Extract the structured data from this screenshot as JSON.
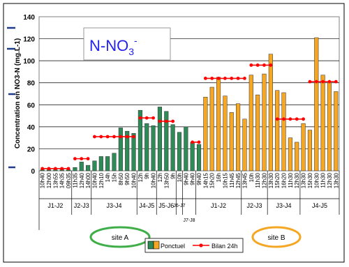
{
  "colors": {
    "site_a": "#2e8b57",
    "site_b": "#f5a623",
    "bilan_line": "#ff0000",
    "title_blue": "#2222ee",
    "left_deco": "#1f3c88",
    "ellipse_a": "#3fae49",
    "ellipse_b": "#f5a623"
  },
  "chart_data": {
    "type": "bar",
    "title": "N-NO",
    "title_sub": "3",
    "title_sup": "-",
    "ylabel": "Concentration en NO3-N (mg.L-1)",
    "ylim": [
      0,
      140
    ],
    "yticks": [
      "0",
      "20",
      "40",
      "60",
      "80",
      "100",
      "120",
      "140"
    ],
    "grid": true,
    "legend_position": "bottom-center",
    "legend": {
      "bars": "Ponctuel",
      "line": "Bilan 24h"
    },
    "site_labels": [
      "site A",
      "site B"
    ],
    "categories": [
      "10h40",
      "12h00",
      "13h55",
      "14h35",
      "09h35",
      "11h35",
      "12h40",
      "14h00",
      "10h40",
      "12h10",
      "14h",
      "15h",
      "8h50",
      "9h50",
      "10h40",
      "12h",
      "9h",
      "10h40",
      "12h",
      "13h50",
      "9h",
      "10h",
      "9h40",
      "9h40",
      "9h40",
      "14h15",
      "15h20",
      "16h",
      "10h15",
      "11h45",
      "12h45",
      "13h45",
      "10h",
      "11h30",
      "12h30",
      "13h30",
      "15h20",
      "16h20",
      "11h30",
      "12h30",
      "13h30",
      "15h30",
      "10h30",
      "11h30",
      "12h30",
      "13h30"
    ],
    "values": [
      1,
      1,
      1,
      1,
      1,
      3,
      8,
      5,
      9,
      13,
      13,
      16,
      39,
      36,
      34,
      55,
      43,
      41,
      58,
      54,
      42,
      35,
      40,
      26,
      24,
      67,
      76,
      85,
      68,
      53,
      61,
      47,
      87,
      69,
      88,
      106,
      73,
      71,
      30,
      26,
      43,
      37,
      121,
      87,
      80,
      72
    ],
    "day_groups": [
      {
        "label": "J1-J2",
        "count": 5
      },
      {
        "label": "J2-J3",
        "count": 3
      },
      {
        "label": "J3-J4",
        "count": 7
      },
      {
        "label": "J4-J5",
        "count": 3
      },
      {
        "label": "J5-J6",
        "count": 3
      },
      {
        "label": "J6-J7",
        "count": 1
      },
      {
        "label": "J7-J8",
        "count": 2
      },
      {
        "label": "J1-J2",
        "count": 7
      },
      {
        "label": "J2-J3",
        "count": 4
      },
      {
        "label": "J3-J4",
        "count": 5
      },
      {
        "label": "J4-J5",
        "count": 6
      }
    ],
    "bilan_24h": [
      {
        "start": 0,
        "end": 4,
        "value": 2
      },
      {
        "start": 5,
        "end": 7,
        "value": 11
      },
      {
        "start": 8,
        "end": 14,
        "value": 31
      },
      {
        "start": 15,
        "end": 17,
        "value": 48
      },
      {
        "start": 18,
        "end": 20,
        "value": 45
      },
      {
        "start": 23,
        "end": 24,
        "value": 26
      },
      {
        "start": 25,
        "end": 31,
        "value": 84
      },
      {
        "start": 32,
        "end": 35,
        "value": 96
      },
      {
        "start": 36,
        "end": 40,
        "value": 47
      },
      {
        "start": 41,
        "end": 45,
        "value": 81
      }
    ],
    "site_b_start_index": 25
  }
}
